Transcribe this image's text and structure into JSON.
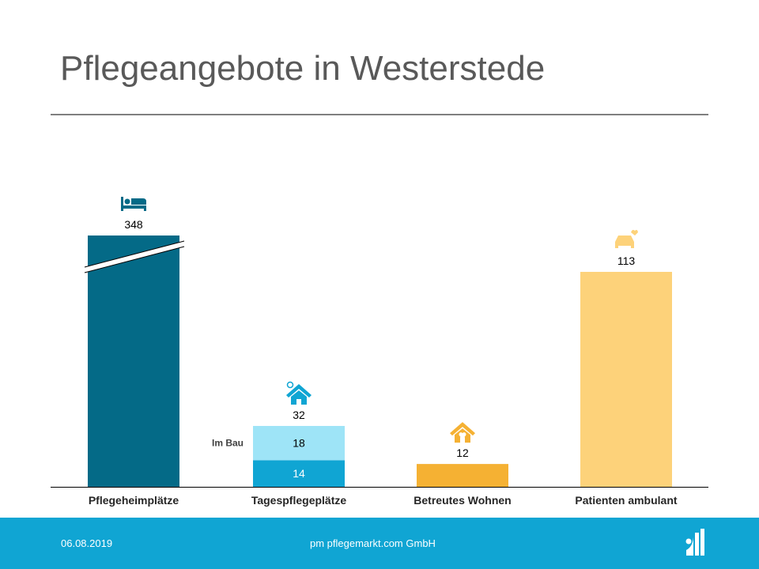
{
  "title": "Pflegeangebote in Westerstede",
  "chart_data": {
    "type": "bar",
    "stacked": true,
    "broken_axis_category": "Pflegeheimplätze",
    "categories": [
      "Pflegeheimplätze",
      "Tagespflegeplätze",
      "Betreutes Wohnen",
      "Patienten ambulant"
    ],
    "totals": [
      348,
      32,
      12,
      113
    ],
    "segments": [
      {
        "category": "Pflegeheimplätze",
        "value": 348,
        "color": "#046a87"
      },
      {
        "category": "Tagespflegeplätze",
        "value": 14,
        "color": "#10a5d3"
      },
      {
        "category": "Tagespflegeplätze",
        "value": 18,
        "color": "#9ee4f7",
        "label": "Im Bau"
      },
      {
        "category": "Betreutes Wohnen",
        "value": 12,
        "color": "#f5b133"
      },
      {
        "category": "Patienten ambulant",
        "value": 113,
        "color": "#fdd27a"
      }
    ],
    "icons": [
      "bed-icon",
      "house-sun-icon",
      "house-heart-icon",
      "car-care-icon"
    ],
    "icon_colors": [
      "#046a87",
      "#10a5d3",
      "#f5b133",
      "#fdd27a"
    ],
    "segment_labels": [
      "14",
      "18"
    ],
    "total_labels": [
      "348",
      "32",
      "12",
      "113"
    ],
    "im_bau_label": "Im Bau",
    "grid": false
  },
  "footer": {
    "date": "06.08.2019",
    "company": "pm pflegemarkt.com GmbH",
    "color": "#10a5d3"
  }
}
